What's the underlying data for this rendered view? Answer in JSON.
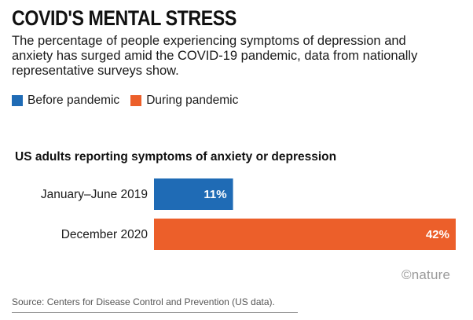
{
  "header": {
    "title": "COVID'S MENTAL STRESS",
    "subtitle": "The percentage of people experiencing symptoms of depression and anxiety has surged amid the COVID-19 pandemic, data from nationally representative surveys show."
  },
  "legend": [
    {
      "label": "Before pandemic",
      "color": "#1f6bb5"
    },
    {
      "label": "During pandemic",
      "color": "#ec5f2a"
    }
  ],
  "chart_data": {
    "type": "bar",
    "orientation": "horizontal",
    "title": "US adults reporting symptoms of anxiety or depression",
    "categories": [
      "January–June 2019",
      "December 2020"
    ],
    "values": [
      11,
      42
    ],
    "value_labels": [
      "11%",
      "42%"
    ],
    "colors": [
      "#1f6bb5",
      "#ec5f2a"
    ],
    "xlim": [
      0,
      42
    ],
    "grid": false
  },
  "branding": {
    "logo": "©nature"
  },
  "footer": {
    "source": "Source: Centers for Disease Control and Prevention (US data)."
  }
}
